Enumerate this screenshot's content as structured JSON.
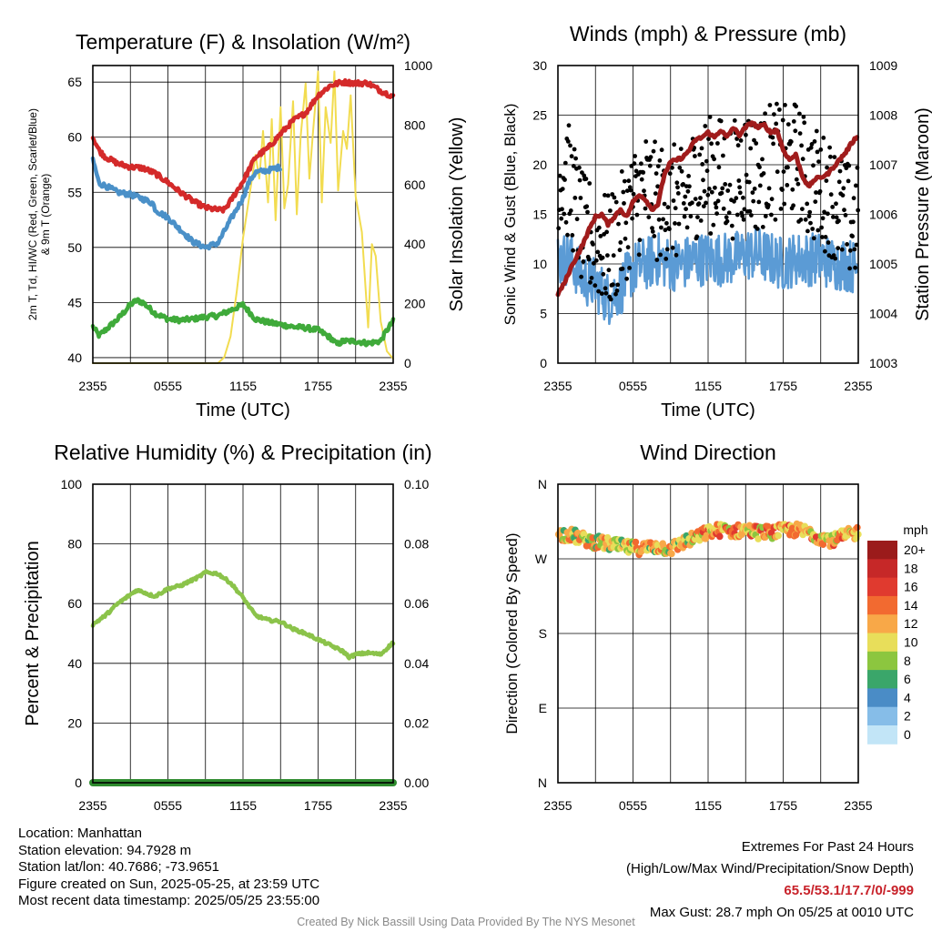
{
  "chart_data": [
    {
      "type": "line",
      "title": "Temperature (F) & Insolation (W/m²)",
      "xlabel": "Time (UTC)",
      "ylabel": "2m T, Td, HI/WC (Red, Green, Scarlet/Blue) & 9m T (Orange)",
      "y2label": "Solar Insolation (Yellow)",
      "x_ticks": [
        "2355",
        "0555",
        "1155",
        "1755",
        "2355"
      ],
      "x_range_hours": [
        0,
        24
      ],
      "ylim": [
        39.5,
        66.5
      ],
      "y_ticks": [
        40,
        45,
        50,
        55,
        60,
        65
      ],
      "y2lim": [
        0,
        1000
      ],
      "y2_ticks": [
        0,
        200,
        400,
        600,
        800,
        1000
      ],
      "grid": true,
      "series": [
        {
          "color": "#d42a2a",
          "axis": "left",
          "x": [
            0,
            0.5,
            1,
            2,
            3,
            4,
            5,
            6,
            7,
            8,
            9,
            10,
            10.5,
            11,
            12,
            13,
            14,
            15,
            16,
            17,
            18,
            19,
            20,
            21,
            22,
            23,
            24
          ],
          "y": [
            60.0,
            58.8,
            58.2,
            57.6,
            57.3,
            57.2,
            56.7,
            55.9,
            55.0,
            54.2,
            53.6,
            53.4,
            53.4,
            54.2,
            56.0,
            58.2,
            59.0,
            60.3,
            61.5,
            62.2,
            63.8,
            64.7,
            65.0,
            64.9,
            64.9,
            64.2,
            63.7
          ]
        },
        {
          "color": "#4a90c8",
          "axis": "left",
          "x": [
            0,
            0.5,
            1,
            2,
            3,
            4,
            4.8,
            5,
            6,
            7,
            8,
            9,
            10,
            11,
            12,
            12.5,
            13,
            14,
            15
          ],
          "y": [
            58.0,
            55.8,
            55.6,
            55.0,
            54.8,
            54.4,
            54.0,
            53.4,
            52.7,
            51.6,
            50.5,
            50.0,
            50.4,
            52.5,
            54.5,
            56.0,
            56.8,
            57.0,
            57.3
          ]
        },
        {
          "color": "#3faa3a",
          "axis": "left",
          "x": [
            0,
            0.5,
            1,
            2,
            3,
            3.5,
            4,
            5,
            6,
            7,
            8,
            9,
            10,
            11,
            12,
            13,
            14,
            15,
            16,
            17,
            18,
            19,
            19.5,
            20,
            21,
            22,
            23,
            23.5,
            24
          ],
          "y": [
            42.8,
            42.0,
            42.5,
            43.5,
            44.8,
            45.2,
            45.0,
            44.0,
            43.5,
            43.4,
            43.5,
            43.7,
            43.8,
            44.3,
            44.8,
            43.5,
            43.2,
            43.0,
            42.8,
            42.7,
            42.5,
            41.8,
            41.2,
            41.5,
            41.5,
            41.3,
            41.5,
            42.5,
            43.3
          ]
        },
        {
          "color": "#f2dc50",
          "axis": "right",
          "x": [
            0,
            1,
            2,
            3,
            4,
            5,
            6,
            7,
            8,
            9,
            9.5,
            10,
            10.5,
            11,
            11.5,
            12,
            12.5,
            13,
            13.3,
            13.6,
            14,
            14.3,
            14.6,
            15,
            15.3,
            15.6,
            16,
            16.3,
            16.6,
            17,
            17.3,
            17.6,
            18,
            18.3,
            18.6,
            19,
            19.3,
            19.6,
            20,
            20.3,
            20.6,
            21,
            21.5,
            22,
            22.3,
            22.6,
            23,
            23.5,
            24
          ],
          "y": [
            0,
            0,
            0,
            0,
            0,
            0,
            0,
            0,
            0,
            0,
            0,
            0,
            20,
            90,
            240,
            420,
            560,
            700,
            620,
            780,
            540,
            820,
            480,
            860,
            520,
            600,
            880,
            500,
            760,
            940,
            620,
            780,
            980,
            540,
            860,
            740,
            980,
            580,
            780,
            720,
            900,
            560,
            440,
            120,
            400,
            360,
            140,
            40,
            15
          ]
        }
      ]
    },
    {
      "type": "scatter",
      "title": "Winds (mph) & Pressure (mb)",
      "xlabel": "Time (UTC)",
      "ylabel": "Sonic Wind & Gust (Blue, Black)",
      "y2label": "Station Pressure (Maroon)",
      "x_ticks": [
        "2355",
        "0555",
        "1155",
        "1755",
        "2355"
      ],
      "x_range_hours": [
        0,
        24
      ],
      "ylim": [
        0,
        30
      ],
      "y_ticks": [
        0,
        5,
        10,
        15,
        20,
        25,
        30
      ],
      "y2lim": [
        1003,
        1009
      ],
      "y2_ticks": [
        1003,
        1004,
        1005,
        1006,
        1007,
        1008,
        1009
      ],
      "grid": true,
      "series": [
        {
          "color": "#5b9bd5",
          "axis": "left",
          "x": [
            0,
            1,
            2,
            3,
            4,
            5,
            6,
            7,
            8,
            9,
            10,
            11,
            12,
            13,
            14,
            15,
            16,
            17,
            18,
            19,
            20,
            21,
            22,
            23,
            24
          ],
          "y": [
            10.5,
            10.5,
            8.5,
            8.0,
            6.5,
            7.5,
            9.5,
            10.0,
            10.5,
            10.0,
            10.0,
            10.5,
            10.5,
            10.5,
            10.5,
            11.0,
            11.0,
            10.5,
            10.0,
            10.5,
            10.5,
            10.5,
            10.0,
            10.0,
            9.5
          ]
        },
        {
          "color": "#000000",
          "axis": "left",
          "x": [
            0,
            1,
            2,
            3,
            4,
            5,
            6,
            7,
            8,
            9,
            10,
            11,
            12,
            13,
            14,
            15,
            16,
            17,
            18,
            19,
            20,
            21,
            22,
            23,
            24
          ],
          "y": [
            19.5,
            18.0,
            13.0,
            12.5,
            11.0,
            13.0,
            16.0,
            17.5,
            16.0,
            16.5,
            15.5,
            18.5,
            19.0,
            19.0,
            18.5,
            20.0,
            19.0,
            20.5,
            20.0,
            20.5,
            18.5,
            17.5,
            16.5,
            14.5,
            14.0
          ]
        },
        {
          "color": "#a01c1c",
          "axis": "right",
          "x": [
            0,
            0.5,
            1,
            2,
            2.5,
            3,
            3.5,
            4,
            4.5,
            5,
            5.5,
            6,
            6.5,
            7,
            7.5,
            8,
            8.5,
            9,
            9.5,
            10,
            10.5,
            11,
            11.5,
            12,
            12.5,
            13,
            13.5,
            14,
            14.5,
            15,
            15.5,
            16,
            16.5,
            17,
            17.5,
            18,
            18.5,
            19,
            19.5,
            20,
            20.5,
            21,
            21.5,
            22,
            22.5,
            23,
            23.5,
            24
          ],
          "y": [
            1004.4,
            1004.6,
            1004.9,
            1005.4,
            1005.7,
            1005.95,
            1006.0,
            1005.8,
            1005.95,
            1006.1,
            1005.95,
            1006.25,
            1006.4,
            1006.3,
            1006.1,
            1006.2,
            1006.8,
            1007.05,
            1007.1,
            1007.15,
            1007.3,
            1007.5,
            1007.55,
            1007.65,
            1007.55,
            1007.7,
            1007.55,
            1007.75,
            1007.6,
            1007.75,
            1007.85,
            1007.75,
            1007.8,
            1007.65,
            1007.7,
            1007.3,
            1007.1,
            1007.2,
            1006.8,
            1006.55,
            1006.7,
            1006.75,
            1006.8,
            1006.95,
            1007.1,
            1007.25,
            1007.45,
            1007.6
          ]
        }
      ]
    },
    {
      "type": "line",
      "title": "Relative Humidity (%) & Precipitation (in)",
      "ylabel": "Percent & Precipitation",
      "x_ticks": [
        "2355",
        "0555",
        "1155",
        "1755",
        "2355"
      ],
      "x_range_hours": [
        0,
        24
      ],
      "ylim": [
        0,
        100
      ],
      "y_ticks": [
        0,
        20,
        40,
        60,
        80,
        100
      ],
      "y2lim": [
        0,
        0.1
      ],
      "y2_ticks": [
        "0.00",
        "0.02",
        "0.04",
        "0.06",
        "0.08",
        "0.10"
      ],
      "grid": true,
      "series": [
        {
          "color": "#8bc34a",
          "axis": "left",
          "x": [
            0,
            1,
            2,
            3,
            3.5,
            4,
            4.5,
            5,
            6,
            7,
            8,
            8.5,
            9,
            10,
            11,
            12,
            13,
            14,
            15,
            16,
            17,
            18,
            19,
            20,
            20.5,
            21,
            22,
            23,
            23.5,
            24
          ],
          "y": [
            53,
            56,
            60,
            63,
            64.5,
            64,
            63,
            62.5,
            65,
            66,
            68,
            69,
            70.5,
            70,
            67,
            62,
            56,
            54.5,
            54,
            51.5,
            50,
            48,
            46,
            44,
            42,
            43,
            43.5,
            43,
            45,
            47
          ]
        },
        {
          "color": "#2e8b2e",
          "axis": "left",
          "x": [
            0,
            24
          ],
          "y": [
            0,
            0
          ]
        }
      ]
    },
    {
      "type": "scatter",
      "title": "Wind Direction",
      "ylabel": "Direction (Colored By Speed)",
      "x_ticks": [
        "2355",
        "0555",
        "1155",
        "1755",
        "2355"
      ],
      "x_range_hours": [
        0,
        24
      ],
      "ylim": [
        0,
        360
      ],
      "y_ticks": [
        "N",
        "E",
        "S",
        "W",
        "N"
      ],
      "grid": true,
      "legend_title": "mph",
      "legend_labels": [
        "20+",
        "18",
        "16",
        "14",
        "12",
        "10",
        "8",
        "6",
        "4",
        "2",
        "0"
      ],
      "legend_colors": [
        "#9b1b1b",
        "#c62828",
        "#e03a2f",
        "#f26a30",
        "#f8a848",
        "#e8de5a",
        "#8cc63f",
        "#3aa66a",
        "#4a8cc6",
        "#86bde8",
        "#c2e5f7"
      ],
      "series": [
        {
          "name": "direction",
          "x": [
            0,
            1,
            2,
            3,
            4,
            5,
            6,
            7,
            8,
            9,
            10,
            11,
            12,
            13,
            14,
            15,
            16,
            17,
            18,
            19,
            20,
            21,
            22,
            23,
            24
          ],
          "y": [
            300,
            299,
            294,
            290,
            288,
            285,
            283,
            283,
            285,
            282,
            290,
            295,
            302,
            305,
            303,
            305,
            302,
            302,
            304,
            305,
            302,
            296,
            292,
            298,
            302
          ]
        }
      ]
    }
  ],
  "info": {
    "location": "Location: Manhattan",
    "elevation": "Station elevation: 94.7928 m",
    "latlon": "Station lat/lon: 40.7686; -73.9651",
    "created": "Figure created on Sun, 2025-05-25, at 23:59 UTC",
    "recent": "Most recent data timestamp: 2025/05/25 23:55:00"
  },
  "extremes": {
    "heading": "Extremes For Past 24 Hours",
    "subheading": "(High/Low/Max Wind/Precipitation/Snow Depth)",
    "values": "65.5/53.1/17.7/0/-999",
    "max_gust": "Max Gust: 28.7 mph On 05/25 at 0010 UTC"
  },
  "footer": "Created By Nick Bassill Using Data Provided By The NYS Mesonet"
}
